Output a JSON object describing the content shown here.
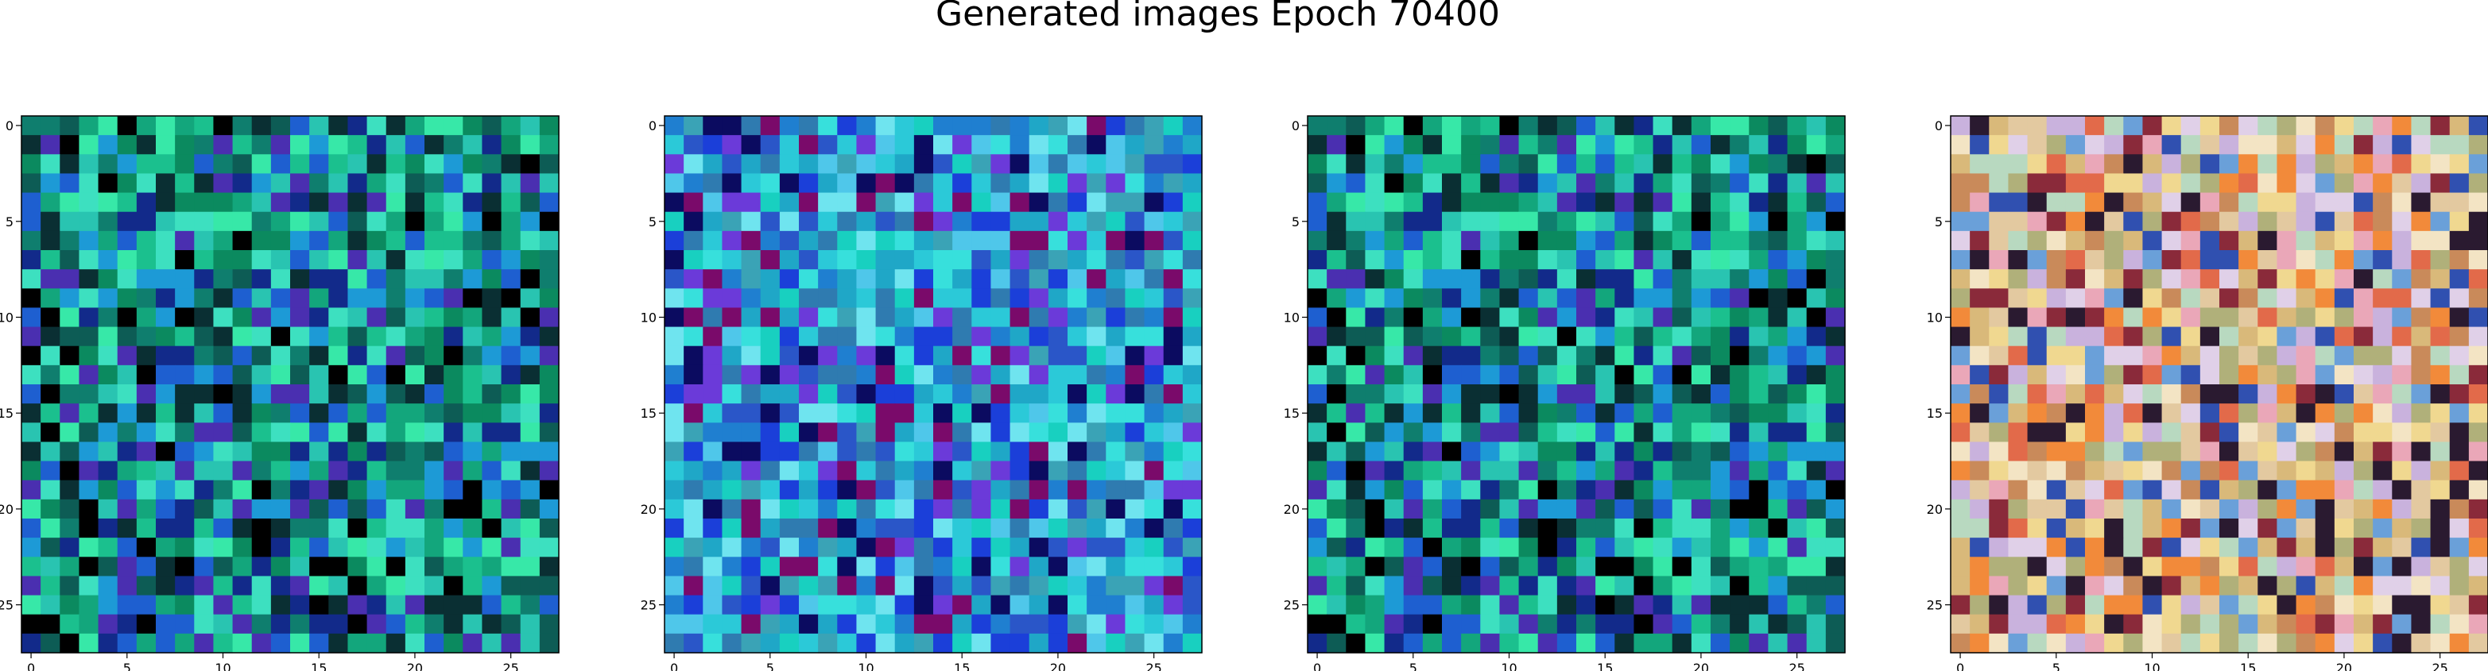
{
  "figure": {
    "title": "Generated images Epoch 70400"
  },
  "chart_data": [
    {
      "type": "heatmap",
      "grid_size": 28,
      "x_ticks": [
        "0",
        "5",
        "10",
        "15",
        "20",
        "25"
      ],
      "y_ticks": [
        "0",
        "5",
        "10",
        "15",
        "20",
        "25"
      ],
      "xlim": [
        -0.5,
        27.5
      ],
      "ylim": [
        27.5,
        -0.5
      ],
      "palette": [
        "#0b8a5f",
        "#13a67c",
        "#1bc08e",
        "#0f7e6e",
        "#0d5c55",
        "#0a2f33",
        "#122a8a",
        "#1e5fd0",
        "#29c4b1",
        "#3de0c0",
        "#37e8a8",
        "#000000",
        "#4a2fb0",
        "#1d9ad6"
      ],
      "seed": 11
    },
    {
      "type": "heatmap",
      "grid_size": 28,
      "x_ticks": [
        "0",
        "5",
        "10",
        "15",
        "20",
        "25"
      ],
      "y_ticks": [
        "0",
        "5",
        "10",
        "15",
        "20",
        "25"
      ],
      "xlim": [
        -0.5,
        27.5
      ],
      "ylim": [
        27.5,
        -0.5
      ],
      "palette": [
        "#1fa7c7",
        "#2bc9d8",
        "#37e0dc",
        "#1f7fd0",
        "#2a56c8",
        "#3aa3b6",
        "#6fe4ef",
        "#0b0b60",
        "#6b3ad9",
        "#2f7bb0",
        "#18d0c0",
        "#7a0a6a",
        "#1b3fd9",
        "#4fc7ea"
      ],
      "seed": 23
    },
    {
      "type": "heatmap",
      "grid_size": 28,
      "x_ticks": [
        "0",
        "5",
        "10",
        "15",
        "20",
        "25"
      ],
      "y_ticks": [
        "0",
        "5",
        "10",
        "15",
        "20",
        "25"
      ],
      "xlim": [
        -0.5,
        27.5
      ],
      "ylim": [
        27.5,
        -0.5
      ],
      "palette": [
        "#0b8a5f",
        "#13a67c",
        "#1bc08e",
        "#0f7e6e",
        "#0d5c55",
        "#0a2f33",
        "#122a8a",
        "#1e5fd0",
        "#29c4b1",
        "#3de0c0",
        "#37e8a8",
        "#000000",
        "#4a2fb0",
        "#1d9ad6"
      ],
      "seed": 11
    },
    {
      "type": "heatmap",
      "grid_size": 28,
      "x_ticks": [
        "0",
        "5",
        "10",
        "15",
        "20",
        "25"
      ],
      "y_ticks": [
        "0",
        "5",
        "10",
        "15",
        "20",
        "25"
      ],
      "xlim": [
        -0.5,
        27.5
      ],
      "ylim": [
        27.5,
        -0.5
      ],
      "palette": [
        "#e3c9a0",
        "#f0d890",
        "#d9b97a",
        "#eaa7b8",
        "#c9b2dd",
        "#b8d9c0",
        "#f3e4c4",
        "#c98a5a",
        "#e26a4a",
        "#8a2a3a",
        "#2a1a30",
        "#6aa0d9",
        "#e0d0e8",
        "#b0b07a",
        "#f28a3a",
        "#3050b0"
      ],
      "seed": 37
    }
  ]
}
